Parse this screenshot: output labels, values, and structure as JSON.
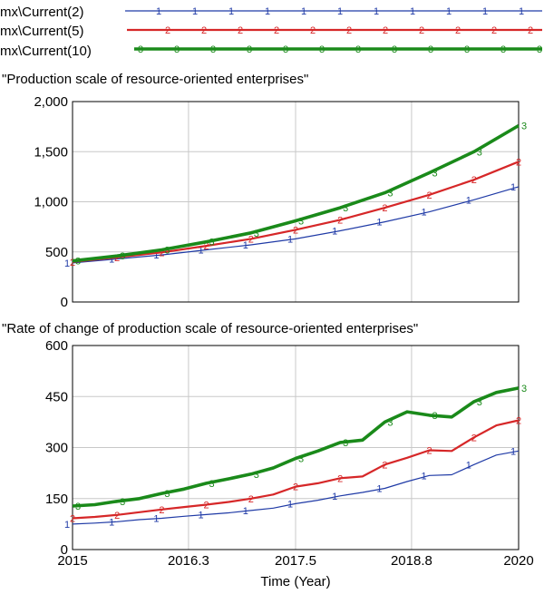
{
  "chart_data": [
    {
      "type": "line",
      "title": "\"Production scale of resource-oriented enterprises\"",
      "xlabel": "",
      "ylabel": "",
      "xlim": [
        2015,
        2020
      ],
      "ylim": [
        0,
        2000
      ],
      "x_ticks": [
        2015,
        2016.3,
        2017.5,
        2018.8,
        2020
      ],
      "y_ticks": [
        0,
        500,
        1000,
        1500,
        2000
      ],
      "y_tick_labels": [
        "0",
        "500",
        "1,000",
        "1,500",
        "2,000"
      ],
      "grid": true,
      "legend": "top",
      "x": [
        2015,
        2015.5,
        2016,
        2016.5,
        2017,
        2017.5,
        2018,
        2018.5,
        2019,
        2019.5,
        2020
      ],
      "series": [
        {
          "name": "mx\\Current(2)",
          "marker": "1",
          "color": "#1f3aa6",
          "values": [
            390,
            430,
            470,
            520,
            570,
            630,
            710,
            800,
            900,
            1020,
            1150
          ]
        },
        {
          "name": "mx\\Current(5)",
          "marker": "2",
          "color": "#d62728",
          "values": [
            400,
            445,
            495,
            560,
            630,
            720,
            820,
            940,
            1070,
            1220,
            1400
          ]
        },
        {
          "name": "mx\\Current(10)",
          "marker": "3",
          "color": "#1a8a1a",
          "values": [
            410,
            460,
            520,
            600,
            690,
            810,
            940,
            1090,
            1290,
            1500,
            1760
          ]
        }
      ]
    },
    {
      "type": "line",
      "title": "\"Rate of change of production scale of resource-oriented enterprises\"",
      "xlabel": "Time (Year)",
      "ylabel": "",
      "xlim": [
        2015,
        2020
      ],
      "ylim": [
        0,
        600
      ],
      "x_ticks": [
        2015,
        2016.3,
        2017.5,
        2018.8,
        2020
      ],
      "x_tick_labels": [
        "2015",
        "2016.3",
        "2017.5",
        "2018.8",
        "2020"
      ],
      "y_ticks": [
        0,
        150,
        300,
        450,
        600
      ],
      "y_tick_labels": [
        "0",
        "150",
        "300",
        "450",
        "600"
      ],
      "grid": true,
      "x": [
        2015,
        2015.25,
        2015.5,
        2015.75,
        2016,
        2016.25,
        2016.5,
        2016.75,
        2017,
        2017.25,
        2017.5,
        2017.75,
        2018,
        2018.25,
        2018.5,
        2018.75,
        2019,
        2019.25,
        2019.5,
        2019.75,
        2020
      ],
      "series": [
        {
          "name": "mx\\Current(2)",
          "marker": "1",
          "color": "#1f3aa6",
          "values": [
            75,
            78,
            82,
            88,
            92,
            98,
            103,
            108,
            115,
            122,
            135,
            145,
            158,
            168,
            180,
            200,
            218,
            220,
            250,
            278,
            290
          ]
        },
        {
          "name": "mx\\Current(5)",
          "marker": "2",
          "color": "#d62728",
          "values": [
            92,
            96,
            102,
            110,
            118,
            125,
            132,
            140,
            150,
            162,
            185,
            195,
            210,
            215,
            250,
            270,
            292,
            290,
            330,
            365,
            380
          ]
        },
        {
          "name": "mx\\Current(10)",
          "marker": "3",
          "color": "#1a8a1a",
          "values": [
            128,
            132,
            142,
            150,
            165,
            178,
            195,
            208,
            222,
            240,
            268,
            290,
            315,
            322,
            375,
            405,
            395,
            390,
            435,
            462,
            475
          ]
        }
      ]
    }
  ]
}
